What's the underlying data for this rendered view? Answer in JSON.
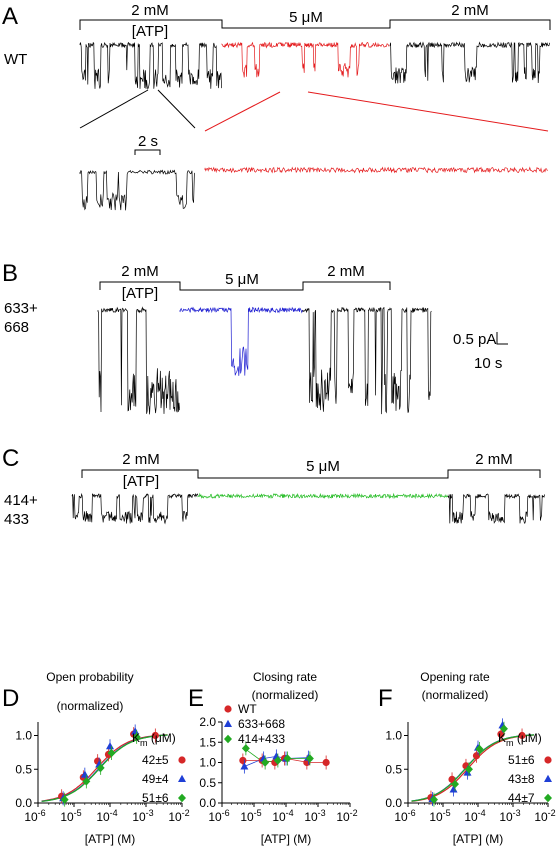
{
  "panels": {
    "A": {
      "letter": "A",
      "construct": "WT",
      "seg_labels": [
        "2 mM",
        "5 μM",
        "2 mM"
      ],
      "atp_label": "[ATP]",
      "zoom_scale": "2 s",
      "highlight_color": "#e41a1c"
    },
    "B": {
      "letter": "B",
      "construct_line1": "633+",
      "construct_line2": "668",
      "seg_labels": [
        "2 mM",
        "5 μM",
        "2 mM"
      ],
      "atp_label": "[ATP]",
      "scale_current": "0.5 pA",
      "scale_time": "10 s",
      "highlight_color": "#1f1fd1"
    },
    "C": {
      "letter": "C",
      "construct_line1": "414+",
      "construct_line2": "433",
      "seg_labels": [
        "2 mM",
        "5 μM",
        "2 mM"
      ],
      "atp_label": "[ATP]",
      "highlight_color": "#22bb22"
    }
  },
  "colors": {
    "WT": "#d62728",
    "633+668": "#1f3fd6",
    "414+433": "#22aa22"
  },
  "chart_data": [
    {
      "type": "scatter",
      "panel": "D",
      "title_line1": "Open probability",
      "title_line2": "(normalized)",
      "xlabel": "[ATP] (M)",
      "x_scale": "log",
      "xlim": [
        1e-06,
        0.01
      ],
      "ylim": [
        0,
        1.2
      ],
      "yticks": [
        "0.0",
        "0.5",
        "1.0"
      ],
      "xticks": [
        "10-6",
        "10-5",
        "10-4",
        "10-3",
        "10-2"
      ],
      "km_label": "Km (μM)",
      "km_values": [
        "42±5",
        "49±4",
        "51±6"
      ],
      "series": [
        {
          "key": "WT",
          "x": [
            5e-06,
            2e-05,
            5e-05,
            0.0001,
            0.0005,
            0.002
          ],
          "y": [
            0.1,
            0.38,
            0.62,
            0.72,
            1.02,
            1.0
          ]
        },
        {
          "key": "633+668",
          "x": [
            5e-06,
            2e-05,
            5e-05,
            0.0001,
            0.0005
          ],
          "y": [
            0.07,
            0.42,
            0.57,
            0.84,
            1.06
          ]
        },
        {
          "key": "414+433",
          "x": [
            5e-06,
            2e-05,
            5e-05,
            0.0001,
            0.0005
          ],
          "y": [
            0.05,
            0.32,
            0.52,
            0.74,
            0.98
          ]
        }
      ]
    },
    {
      "type": "scatter",
      "panel": "E",
      "title_line1": "Closing rate",
      "title_line2": "(normalized)",
      "xlabel": "[ATP] (M)",
      "x_scale": "log",
      "xlim": [
        1e-06,
        0.01
      ],
      "ylim": [
        0,
        2.0
      ],
      "yticks": [
        "0.0",
        "0.5",
        "1.0",
        "1.5",
        "2.0"
      ],
      "xticks": [
        "10-6",
        "10-5",
        "10-4",
        "10-3",
        "10-2"
      ],
      "legend": [
        "WT",
        "633+668",
        "414+433"
      ],
      "series": [
        {
          "key": "WT",
          "x": [
            5e-06,
            2e-05,
            5e-05,
            0.0001,
            0.0005,
            0.002
          ],
          "y": [
            1.05,
            1.05,
            1.0,
            1.1,
            1.0,
            1.0
          ]
        },
        {
          "key": "633+668",
          "x": [
            5e-06,
            2e-05,
            5e-05,
            0.0001,
            0.0005
          ],
          "y": [
            0.9,
            1.1,
            1.15,
            1.1,
            1.12
          ]
        },
        {
          "key": "414+433",
          "x": [
            5e-06,
            2e-05,
            5e-05,
            0.0001,
            0.0005
          ],
          "y": [
            1.35,
            1.0,
            1.05,
            1.1,
            1.1
          ]
        }
      ]
    },
    {
      "type": "scatter",
      "panel": "F",
      "title_line1": "Opening rate",
      "title_line2": "(normalized)",
      "xlabel": "[ATP] (M)",
      "x_scale": "log",
      "xlim": [
        1e-06,
        0.01
      ],
      "ylim": [
        0,
        1.2
      ],
      "yticks": [
        "0.0",
        "0.5",
        "1.0"
      ],
      "xticks": [
        "10-6",
        "10-5",
        "10-4",
        "10-3",
        "10-2"
      ],
      "km_label": "Km (μM)",
      "km_values": [
        "51±6",
        "43±8",
        "44±7"
      ],
      "series": [
        {
          "key": "WT",
          "x": [
            5e-06,
            2e-05,
            5e-05,
            0.0001,
            0.0005,
            0.002
          ],
          "y": [
            0.08,
            0.35,
            0.55,
            0.7,
            1.02,
            1.0
          ]
        },
        {
          "key": "633+668",
          "x": [
            5e-06,
            2e-05,
            5e-05,
            0.0001,
            0.0005
          ],
          "y": [
            0.06,
            0.2,
            0.45,
            0.82,
            1.15
          ]
        },
        {
          "key": "414+433",
          "x": [
            5e-06,
            2e-05,
            5e-05,
            0.0001,
            0.0005
          ],
          "y": [
            0.05,
            0.28,
            0.5,
            0.8,
            1.1
          ]
        }
      ]
    }
  ]
}
